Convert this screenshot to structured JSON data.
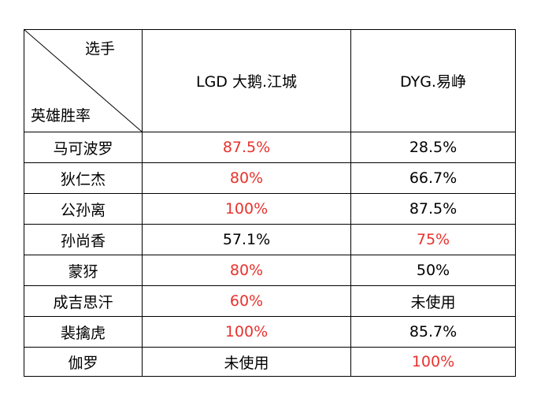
{
  "table": {
    "corner_top": "选手",
    "corner_bottom": "英雄胜率",
    "players": [
      "LGD 大鹅.江城",
      "DYG.易峥"
    ],
    "rows": [
      {
        "hero": "马可波罗",
        "p1": "87.5%",
        "p1_highlight": true,
        "p2": "28.5%",
        "p2_highlight": false
      },
      {
        "hero": "狄仁杰",
        "p1": "80%",
        "p1_highlight": true,
        "p2": "66.7%",
        "p2_highlight": false
      },
      {
        "hero": "公孙离",
        "p1": "100%",
        "p1_highlight": true,
        "p2": "87.5%",
        "p2_highlight": false
      },
      {
        "hero": "孙尚香",
        "p1": "57.1%",
        "p1_highlight": false,
        "p2": "75%",
        "p2_highlight": true
      },
      {
        "hero": "蒙犽",
        "p1": "80%",
        "p1_highlight": true,
        "p2": "50%",
        "p2_highlight": false
      },
      {
        "hero": "成吉思汗",
        "p1": "60%",
        "p1_highlight": true,
        "p2": "未使用",
        "p2_highlight": false
      },
      {
        "hero": "裴擒虎",
        "p1": "100%",
        "p1_highlight": true,
        "p2": "85.7%",
        "p2_highlight": false
      },
      {
        "hero": "伽罗",
        "p1": "未使用",
        "p1_highlight": false,
        "p2": "100%",
        "p2_highlight": true
      }
    ]
  },
  "colors": {
    "highlight": "#e8322d",
    "text": "#000000",
    "border": "#000000"
  }
}
